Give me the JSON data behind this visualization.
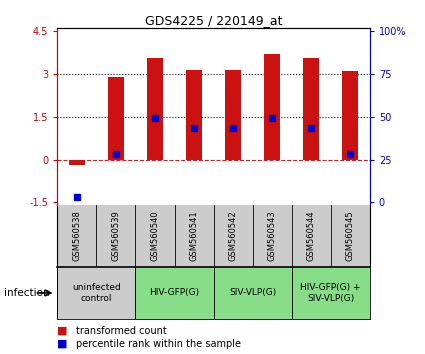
{
  "title": "GDS4225 / 220149_at",
  "samples": [
    "GSM560538",
    "GSM560539",
    "GSM560540",
    "GSM560541",
    "GSM560542",
    "GSM560543",
    "GSM560544",
    "GSM560545"
  ],
  "transformed_counts": [
    -0.18,
    2.9,
    3.55,
    3.15,
    3.15,
    3.7,
    3.55,
    3.1
  ],
  "percentile_ranks": [
    -1.3,
    0.2,
    1.45,
    1.1,
    1.1,
    1.45,
    1.1,
    0.2
  ],
  "ylim": [
    -1.6,
    4.6
  ],
  "yticks_left": [
    -1.5,
    0,
    1.5,
    3,
    4.5
  ],
  "yticks_left_labels": [
    "-1.5",
    "0",
    "1.5",
    "3",
    "4.5"
  ],
  "yticks_right": [
    0,
    25,
    50,
    75,
    100
  ],
  "yticks_right_labels": [
    "0",
    "25",
    "50",
    "75",
    "100%"
  ],
  "yticks_right_pos": [
    -1.5,
    0,
    1.5,
    3,
    4.5
  ],
  "hlines": [
    0,
    1.5,
    3.0
  ],
  "hline_styles": [
    "dashed",
    "dotted",
    "dotted"
  ],
  "hline_colors": [
    "#cc2222",
    "#111111",
    "#111111"
  ],
  "bar_color": "#cc1111",
  "dot_color": "#0000cc",
  "dot_size": 4,
  "infection_groups": [
    {
      "label": "uninfected\ncontrol",
      "start": 0,
      "end": 2,
      "color": "#cccccc"
    },
    {
      "label": "HIV-GFP(G)",
      "start": 2,
      "end": 4,
      "color": "#88dd88"
    },
    {
      "label": "SIV-VLP(G)",
      "start": 4,
      "end": 6,
      "color": "#88dd88"
    },
    {
      "label": "HIV-GFP(G) +\nSIV-VLP(G)",
      "start": 6,
      "end": 8,
      "color": "#88dd88"
    }
  ],
  "legend_red": "transformed count",
  "legend_blue": "percentile rank within the sample",
  "infection_label": "infection",
  "bar_width": 0.4,
  "sample_bg_color": "#cccccc",
  "fig_bg": "white"
}
